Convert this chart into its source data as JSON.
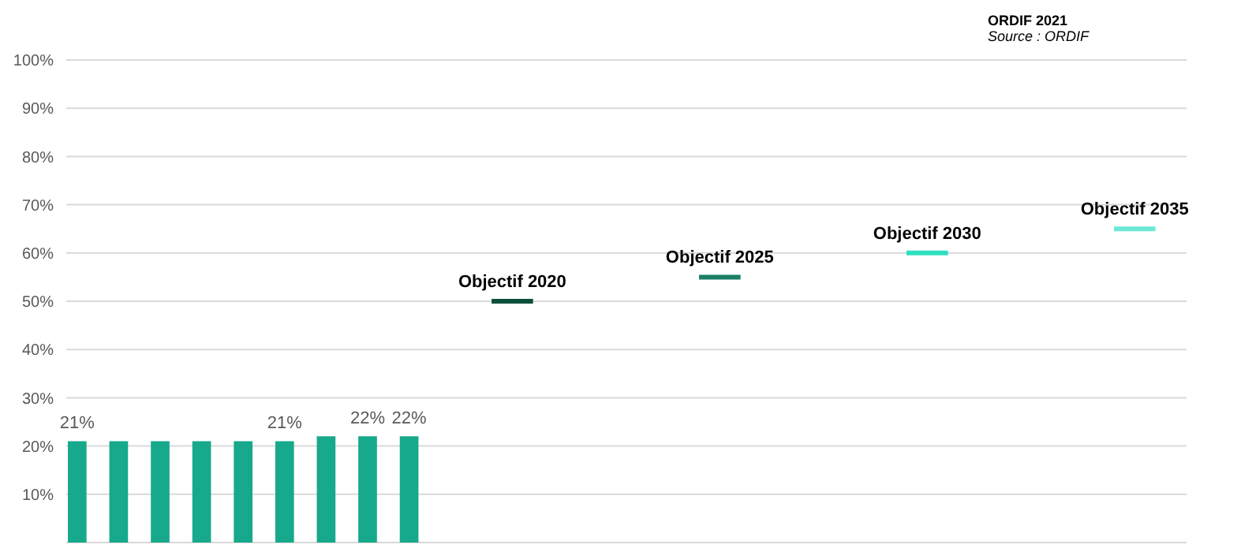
{
  "chart_data": {
    "type": "bar",
    "categories": [
      null,
      null,
      null,
      null,
      null,
      null,
      null,
      null,
      null,
      null,
      null,
      null,
      null,
      null,
      null,
      null,
      null,
      null,
      null,
      null,
      null,
      null,
      null,
      null,
      null,
      null,
      null,
      null,
      null,
      null,
      null,
      null,
      null,
      null,
      null,
      null,
      null,
      null,
      null,
      null,
      null,
      null,
      null,
      null,
      null,
      null,
      null,
      null,
      null,
      null,
      null,
      null,
      null,
      null
    ],
    "series": [
      {
        "color": "#17a98b",
        "values": [
          21,
          null,
          21,
          null,
          21,
          null,
          21,
          null,
          21,
          null,
          21,
          null,
          22,
          null,
          22,
          null,
          22,
          null,
          null,
          null,
          null,
          null,
          null,
          null,
          null,
          null,
          null,
          null,
          null,
          null,
          null,
          null,
          null,
          null,
          null,
          null,
          null,
          null,
          null,
          null,
          null,
          null,
          null,
          null,
          null,
          null,
          null,
          null,
          null,
          null,
          null,
          null,
          null,
          null
        ],
        "value_labels": [
          "21%",
          null,
          null,
          null,
          null,
          null,
          null,
          null,
          null,
          null,
          "21%",
          null,
          null,
          null,
          "22%",
          null,
          "22%",
          null,
          null,
          null,
          null,
          null,
          null,
          null,
          null,
          null,
          null,
          null,
          null,
          null,
          null,
          null,
          null,
          null,
          null,
          null,
          null,
          null,
          null,
          null,
          null,
          null,
          null,
          null,
          null,
          null,
          null,
          null,
          null,
          null,
          null,
          null,
          null,
          null
        ]
      },
      {
        "type": "line",
        "color": "#0b4f3c",
        "values": [
          null,
          null,
          null,
          null,
          null,
          null,
          null,
          null,
          null,
          null,
          null,
          null,
          null,
          null,
          null,
          null,
          null,
          null,
          null,
          null,
          50,
          null,
          50,
          null,
          null,
          null,
          null,
          null,
          null,
          null,
          null,
          null,
          null,
          null,
          null,
          null,
          null,
          null,
          null,
          null,
          null,
          null,
          null,
          null,
          null,
          null,
          null,
          null,
          null,
          null,
          null,
          null,
          null,
          null
        ]
      },
      {
        "type": "line",
        "color": "#1a7f64",
        "values": [
          null,
          null,
          null,
          null,
          null,
          null,
          null,
          null,
          null,
          null,
          null,
          null,
          null,
          null,
          null,
          null,
          null,
          null,
          null,
          null,
          null,
          null,
          null,
          null,
          null,
          null,
          null,
          null,
          null,
          null,
          55,
          null,
          55,
          null,
          null,
          null,
          null,
          null,
          null,
          null,
          null,
          null,
          null,
          null,
          null,
          null,
          null,
          null,
          null,
          null,
          null,
          null,
          null,
          null
        ]
      },
      {
        "type": "line",
        "color": "#2ee0c0",
        "values": [
          null,
          null,
          null,
          null,
          null,
          null,
          null,
          null,
          null,
          null,
          null,
          null,
          null,
          null,
          null,
          null,
          null,
          null,
          null,
          null,
          null,
          null,
          null,
          null,
          null,
          null,
          null,
          null,
          null,
          null,
          null,
          null,
          null,
          null,
          null,
          null,
          null,
          null,
          null,
          null,
          60,
          null,
          60,
          null,
          null,
          null,
          null,
          null,
          null,
          null,
          null,
          null,
          null,
          null
        ]
      },
      {
        "type": "line",
        "color": "#6ee8d6",
        "values": [
          null,
          null,
          null,
          null,
          null,
          null,
          null,
          null,
          null,
          null,
          null,
          null,
          null,
          null,
          null,
          null,
          null,
          null,
          null,
          null,
          null,
          null,
          null,
          null,
          null,
          null,
          null,
          null,
          null,
          null,
          null,
          null,
          null,
          null,
          null,
          null,
          null,
          null,
          null,
          null,
          null,
          null,
          null,
          null,
          null,
          null,
          null,
          null,
          null,
          null,
          65,
          null,
          65,
          null
        ]
      }
    ],
    "ylim": [
      0,
      100
    ],
    "yticks": [
      {
        "value": 10,
        "label": "10%"
      },
      {
        "value": 20,
        "label": "20%"
      },
      {
        "value": 30,
        "label": "30%"
      },
      {
        "value": 40,
        "label": "40%"
      },
      {
        "value": 50,
        "label": "50%"
      },
      {
        "value": 60,
        "label": "60%"
      },
      {
        "value": 70,
        "label": "70%"
      },
      {
        "value": 80,
        "label": "80%"
      },
      {
        "value": 90,
        "label": "90%"
      },
      {
        "value": 100,
        "label": "100%"
      }
    ],
    "grid": "y",
    "tick_labels": "y",
    "marker": "none",
    "line_style": "solid",
    "annotations": [
      "ORDIF 2021",
      "Source : ORDIF",
      {
        "text": "Objectif 2020",
        "y": 50
      },
      {
        "text": "Objectif 2025",
        "y": 55
      },
      {
        "text": "Objectif 2030",
        "y": 60
      },
      {
        "text": "Objectif 2035",
        "y": 65
      }
    ]
  }
}
